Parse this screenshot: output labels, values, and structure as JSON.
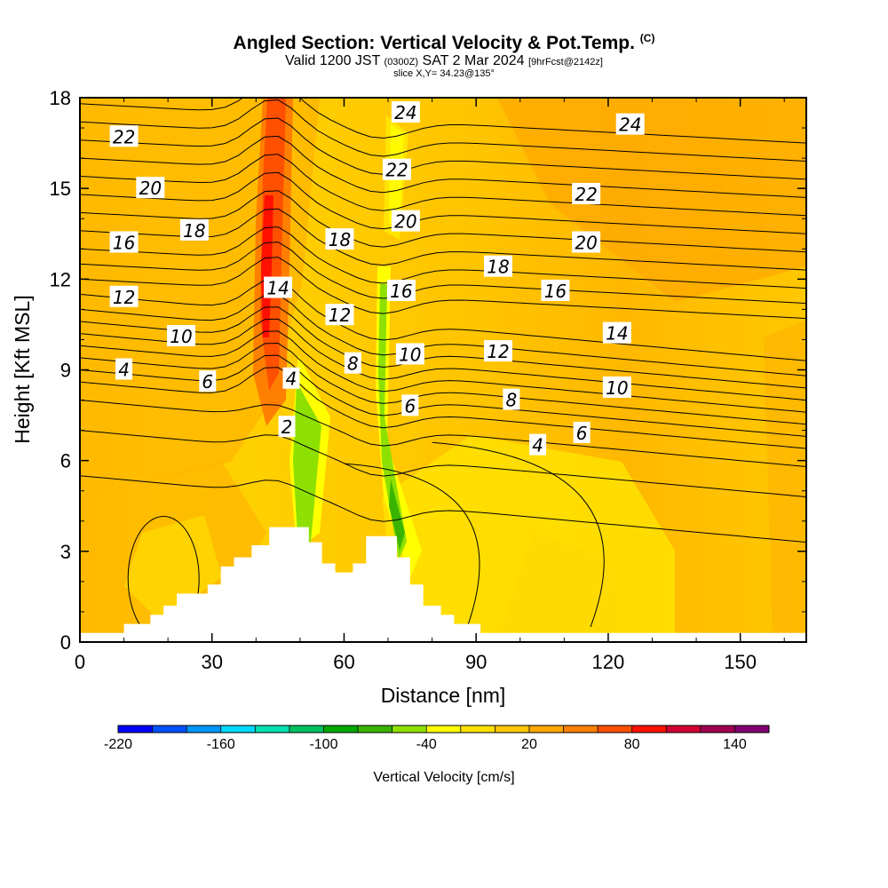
{
  "header": {
    "title": "Angled Section: Vertical Velocity & Pot.Temp.",
    "title_tag": "(C)",
    "valid_main": "Valid 1200 JST",
    "valid_z": "(0300Z)",
    "valid_date": "SAT 2 Mar 2024",
    "valid_fcst": "[9hrFcst@2142z]",
    "slice": "slice X,Y= 34.23@135°"
  },
  "chart_data": {
    "type": "heatmap",
    "xlabel": "Distance [nm]",
    "ylabel": "Height [Kft MSL]",
    "xlim": [
      0,
      165
    ],
    "ylim": [
      0,
      18
    ],
    "x_ticks": [
      0,
      30,
      60,
      90,
      120,
      150
    ],
    "y_ticks": [
      0,
      3,
      6,
      9,
      12,
      15,
      18
    ],
    "colorbar": {
      "title": "Vertical Velocity [cm/s]",
      "min": -220,
      "max": 160,
      "step": 20,
      "tick_labels": [
        -220,
        -160,
        -100,
        -40,
        20,
        80,
        140
      ],
      "colors": [
        "#0000ff",
        "#0050ff",
        "#0096ff",
        "#00d8ff",
        "#00e0b0",
        "#00c060",
        "#00a800",
        "#3ab400",
        "#8ee000",
        "#ffff00",
        "#ffe000",
        "#ffc800",
        "#ffa800",
        "#ff8000",
        "#ff5000",
        "#ff1000",
        "#d00030",
        "#a00050",
        "#800070"
      ]
    },
    "terrain_profile_kft": [
      {
        "x": 0,
        "h": 0.3
      },
      {
        "x": 10,
        "h": 0.6
      },
      {
        "x": 16,
        "h": 0.9
      },
      {
        "x": 19,
        "h": 1.2
      },
      {
        "x": 22,
        "h": 1.6
      },
      {
        "x": 29,
        "h": 1.9
      },
      {
        "x": 32,
        "h": 2.5
      },
      {
        "x": 35,
        "h": 2.8
      },
      {
        "x": 39,
        "h": 3.2
      },
      {
        "x": 43,
        "h": 3.8
      },
      {
        "x": 52,
        "h": 3.3
      },
      {
        "x": 55,
        "h": 2.6
      },
      {
        "x": 58,
        "h": 2.3
      },
      {
        "x": 62,
        "h": 2.6
      },
      {
        "x": 65,
        "h": 3.5
      },
      {
        "x": 72,
        "h": 2.8
      },
      {
        "x": 75,
        "h": 1.9
      },
      {
        "x": 78,
        "h": 1.2
      },
      {
        "x": 82,
        "h": 0.9
      },
      {
        "x": 85,
        "h": 0.6
      },
      {
        "x": 91,
        "h": 0.3
      },
      {
        "x": 165,
        "h": 0.3
      }
    ],
    "contour_labels": [
      {
        "text": "22",
        "x": 10,
        "y": 16.7
      },
      {
        "text": "20",
        "x": 16,
        "y": 15.0
      },
      {
        "text": "18",
        "x": 26,
        "y": 13.6
      },
      {
        "text": "16",
        "x": 10,
        "y": 13.2
      },
      {
        "text": "12",
        "x": 10,
        "y": 11.4
      },
      {
        "text": "10",
        "x": 23,
        "y": 10.1
      },
      {
        "text": "4",
        "x": 10,
        "y": 9.0
      },
      {
        "text": "6",
        "x": 29,
        "y": 8.6
      },
      {
        "text": "14",
        "x": 45,
        "y": 11.7
      },
      {
        "text": "4",
        "x": 48,
        "y": 8.7
      },
      {
        "text": "2",
        "x": 47,
        "y": 7.1
      },
      {
        "text": "18",
        "x": 59,
        "y": 13.3
      },
      {
        "text": "12",
        "x": 59,
        "y": 10.8
      },
      {
        "text": "8",
        "x": 62,
        "y": 9.2
      },
      {
        "text": "24",
        "x": 74,
        "y": 17.5
      },
      {
        "text": "22",
        "x": 72,
        "y": 15.6
      },
      {
        "text": "20",
        "x": 74,
        "y": 13.9
      },
      {
        "text": "16",
        "x": 73,
        "y": 11.6
      },
      {
        "text": "10",
        "x": 75,
        "y": 9.5
      },
      {
        "text": "6",
        "x": 75,
        "y": 7.8
      },
      {
        "text": "18",
        "x": 95,
        "y": 12.4
      },
      {
        "text": "12",
        "x": 95,
        "y": 9.6
      },
      {
        "text": "8",
        "x": 98,
        "y": 8.0
      },
      {
        "text": "4",
        "x": 104,
        "y": 6.5
      },
      {
        "text": "24",
        "x": 125,
        "y": 17.1
      },
      {
        "text": "22",
        "x": 115,
        "y": 14.8
      },
      {
        "text": "20",
        "x": 115,
        "y": 13.2
      },
      {
        "text": "16",
        "x": 108,
        "y": 11.6
      },
      {
        "text": "14",
        "x": 122,
        "y": 10.2
      },
      {
        "text": "10",
        "x": 122,
        "y": 8.4
      },
      {
        "text": "6",
        "x": 114,
        "y": 6.9
      }
    ]
  }
}
